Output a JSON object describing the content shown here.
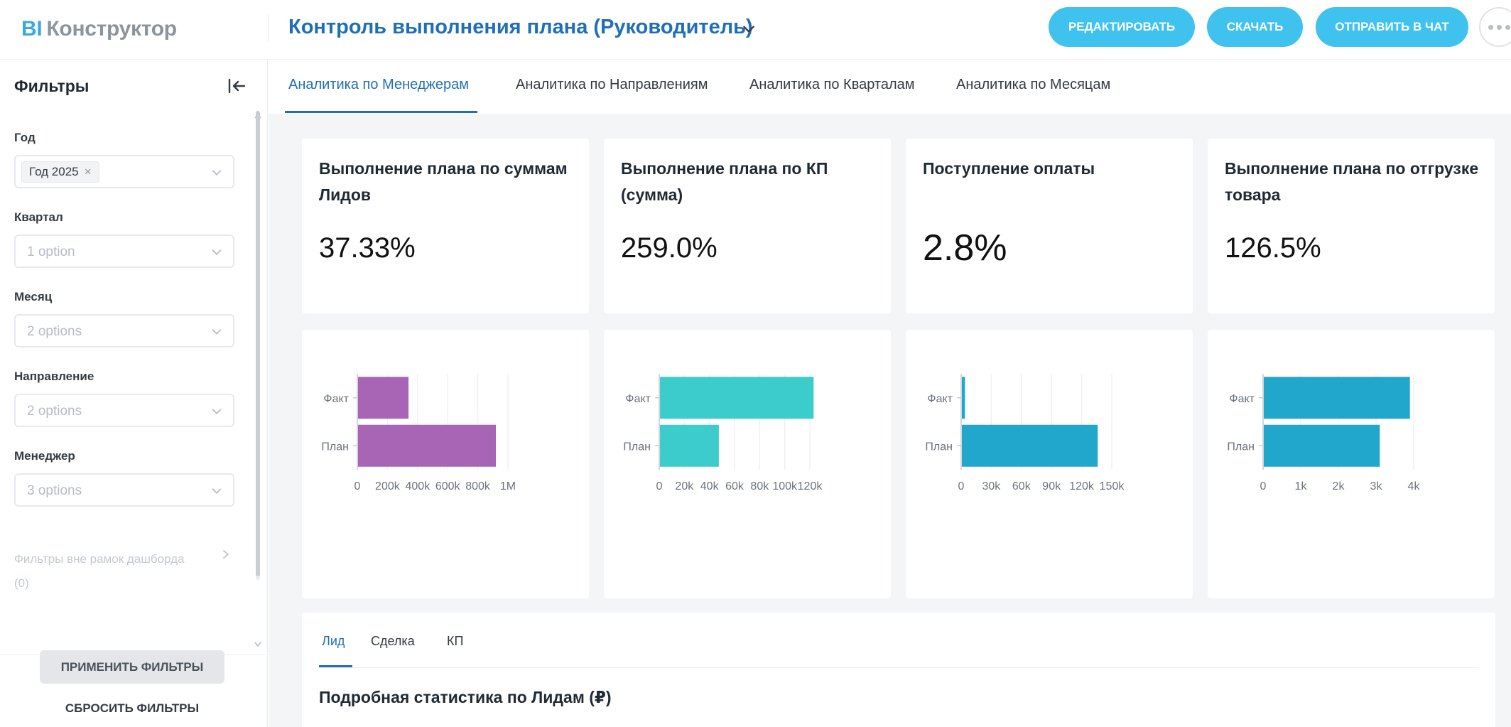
{
  "app": {
    "brand_bi": "BI",
    "brand_name": "Конструктор",
    "dashboard_title": "Контроль выполнения плана (Руководитель)"
  },
  "header_buttons": {
    "edit": "РЕДАКТИРОВАТЬ",
    "download": "СКАЧАТЬ",
    "send": "ОТПРАВИТЬ В ЧАТ"
  },
  "sidebar": {
    "title": "Фильтры",
    "filters": {
      "year": {
        "label": "Год",
        "chip": "Год 2025"
      },
      "quarter": {
        "label": "Квартал",
        "placeholder": "1 option"
      },
      "month": {
        "label": "Месяц",
        "placeholder": "2 options"
      },
      "direction": {
        "label": "Направление",
        "placeholder": "2 options"
      },
      "manager": {
        "label": "Менеджер",
        "placeholder": "3 options"
      }
    },
    "outside_filters": "Фильтры вне рамок дашборда (0)",
    "apply": "ПРИМЕНИТЬ ФИЛЬТРЫ",
    "reset": "СБРОСИТЬ ФИЛЬТРЫ"
  },
  "tabs": [
    {
      "label": "Аналитика по Менеджерам",
      "active": true
    },
    {
      "label": "Аналитика по Направлениям",
      "active": false
    },
    {
      "label": "Аналитика по Кварталам",
      "active": false
    },
    {
      "label": "Аналитика по Месяцам",
      "active": false
    }
  ],
  "kpis": [
    {
      "title": "Выполнение плана по суммам Лидов",
      "value": "37.33%"
    },
    {
      "title": "Выполнение плана по КП (сумма)",
      "value": "259.0%"
    },
    {
      "title": "Поступление оплаты",
      "value": "2.8%"
    },
    {
      "title": "Выполнение плана по отгрузке товара",
      "value": "126.5%"
    }
  ],
  "chart_data": [
    {
      "type": "bar",
      "orientation": "horizontal",
      "categories": [
        "Факт",
        "План"
      ],
      "values": [
        340000,
        920000
      ],
      "xlim": [
        0,
        1000000
      ],
      "ticks": [
        0,
        200000,
        400000,
        600000,
        800000,
        1000000
      ],
      "tick_labels": [
        "0",
        "200k",
        "400k",
        "600k",
        "800k",
        "1M"
      ],
      "grid": true,
      "color": "#a865b5"
    },
    {
      "type": "bar",
      "orientation": "horizontal",
      "categories": [
        "Факт",
        "План"
      ],
      "values": [
        123000,
        47500
      ],
      "xlim": [
        0,
        120000
      ],
      "ticks": [
        0,
        20000,
        40000,
        60000,
        80000,
        100000,
        120000
      ],
      "tick_labels": [
        "0",
        "20k",
        "40k",
        "60k",
        "80k",
        "100k",
        "120k"
      ],
      "grid": true,
      "color": "#3ccccb"
    },
    {
      "type": "bar",
      "orientation": "horizontal",
      "categories": [
        "Факт",
        "План"
      ],
      "values": [
        3800,
        136000
      ],
      "xlim": [
        0,
        150000
      ],
      "ticks": [
        0,
        30000,
        60000,
        90000,
        120000,
        150000
      ],
      "tick_labels": [
        "0",
        "30k",
        "60k",
        "90k",
        "120k",
        "150k"
      ],
      "grid": true,
      "color": "#20a7cb"
    },
    {
      "type": "bar",
      "orientation": "horizontal",
      "categories": [
        "Факт",
        "План"
      ],
      "values": [
        3900,
        3100
      ],
      "xlim": [
        0,
        4000
      ],
      "ticks": [
        0,
        1000,
        2000,
        3000,
        4000
      ],
      "tick_labels": [
        "0",
        "1k",
        "2k",
        "3k",
        "4k"
      ],
      "grid": true,
      "color": "#20a7cb"
    }
  ],
  "detail": {
    "tabs": [
      {
        "label": "Лид",
        "active": true
      },
      {
        "label": "Сделка",
        "active": false
      },
      {
        "label": "КП",
        "active": false
      }
    ],
    "title": "Подробная статистика по Лидам (₽)",
    "legend_colors": [
      "#20a7cb",
      "#5bc9a3"
    ]
  },
  "colors": {
    "accent": "#1f6fb7",
    "button": "#40c2ef"
  }
}
